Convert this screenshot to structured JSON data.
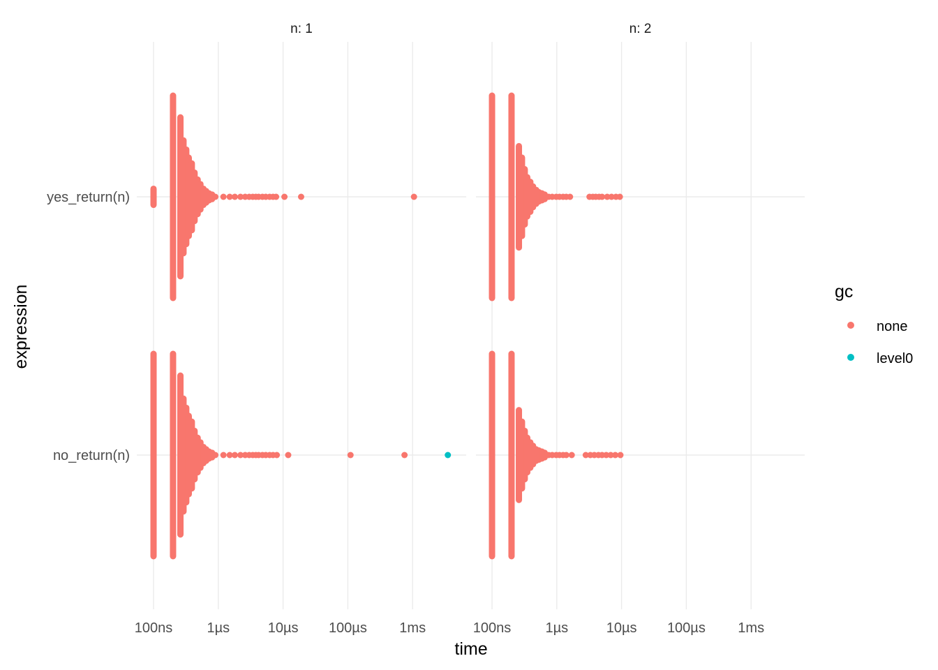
{
  "chart_data": {
    "type": "scatter",
    "xlabel": "time",
    "ylabel": "expression",
    "x_scale": "log10",
    "x_ticks": [
      "100ns",
      "1µs",
      "10µs",
      "100µs",
      "1ms"
    ],
    "x_tick_values_seconds": [
      1e-07,
      1e-06,
      1e-05,
      0.0001,
      0.001
    ],
    "y_categories": [
      "yes_return(n)",
      "no_return(n)"
    ],
    "grid": true,
    "legend": {
      "title": "gc",
      "position": "right",
      "entries": [
        {
          "label": "none",
          "color": "#F8766D"
        },
        {
          "label": "level0",
          "color": "#00BFC4"
        }
      ]
    },
    "facets": [
      {
        "label": "n: 1",
        "rows": [
          {
            "expression": "yes_return(n)",
            "columns": [
              {
                "t": 1e-07,
                "n": 8
              },
              {
                "t": 2e-07,
                "n": 900
              },
              {
                "t": 2.6e-07,
                "n": 70
              },
              {
                "t": 2.9e-07,
                "n": 50
              },
              {
                "t": 3.2e-07,
                "n": 42
              },
              {
                "t": 3.5e-07,
                "n": 35
              },
              {
                "t": 3.9e-07,
                "n": 30
              },
              {
                "t": 4.3e-07,
                "n": 22
              },
              {
                "t": 4.8e-07,
                "n": 16
              },
              {
                "t": 5.3e-07,
                "n": 12
              },
              {
                "t": 5.9e-07,
                "n": 8
              },
              {
                "t": 6.5e-07,
                "n": 6
              },
              {
                "t": 7.2e-07,
                "n": 4
              },
              {
                "t": 8e-07,
                "n": 3
              }
            ],
            "tail": [
              {
                "t": 9e-07
              },
              {
                "t": 1.2e-06
              },
              {
                "t": 1.5e-06
              },
              {
                "t": 1.8e-06
              },
              {
                "t": 2.2e-06
              },
              {
                "t": 2.6e-06
              },
              {
                "t": 3e-06
              },
              {
                "t": 3.4e-06
              },
              {
                "t": 3.8e-06
              },
              {
                "t": 4.2e-06
              },
              {
                "t": 4.8e-06
              },
              {
                "t": 5.4e-06
              },
              {
                "t": 6.2e-06
              },
              {
                "t": 7e-06
              },
              {
                "t": 7.8e-06
              },
              {
                "t": 1.05e-05
              },
              {
                "t": 1.9e-05
              },
              {
                "t": 0.00105
              }
            ],
            "level0": []
          },
          {
            "expression": "no_return(n)",
            "columns": [
              {
                "t": 1e-07,
                "n": 300
              },
              {
                "t": 2e-07,
                "n": 900
              },
              {
                "t": 2.6e-07,
                "n": 70
              },
              {
                "t": 2.9e-07,
                "n": 50
              },
              {
                "t": 3.2e-07,
                "n": 42
              },
              {
                "t": 3.5e-07,
                "n": 35
              },
              {
                "t": 3.9e-07,
                "n": 30
              },
              {
                "t": 4.3e-07,
                "n": 22
              },
              {
                "t": 4.8e-07,
                "n": 16
              },
              {
                "t": 5.3e-07,
                "n": 12
              },
              {
                "t": 5.9e-07,
                "n": 8
              },
              {
                "t": 6.5e-07,
                "n": 6
              },
              {
                "t": 7.2e-07,
                "n": 4
              },
              {
                "t": 8e-07,
                "n": 3
              }
            ],
            "tail": [
              {
                "t": 9e-07
              },
              {
                "t": 1.2e-06
              },
              {
                "t": 1.5e-06
              },
              {
                "t": 1.8e-06
              },
              {
                "t": 2.2e-06
              },
              {
                "t": 2.6e-06
              },
              {
                "t": 3e-06
              },
              {
                "t": 3.4e-06
              },
              {
                "t": 3.8e-06
              },
              {
                "t": 4.2e-06
              },
              {
                "t": 4.8e-06
              },
              {
                "t": 5.4e-06
              },
              {
                "t": 6.2e-06
              },
              {
                "t": 7e-06
              },
              {
                "t": 8e-06
              },
              {
                "t": 1.2e-05
              },
              {
                "t": 0.00011
              },
              {
                "t": 0.00075
              }
            ],
            "level0": [
              {
                "t": 0.0035
              }
            ]
          }
        ]
      },
      {
        "label": "n: 2",
        "rows": [
          {
            "expression": "yes_return(n)",
            "columns": [
              {
                "t": 1e-07,
                "n": 120
              },
              {
                "t": 2e-07,
                "n": 900
              },
              {
                "t": 2.6e-07,
                "n": 45
              },
              {
                "t": 2.9e-07,
                "n": 35
              },
              {
                "t": 3.2e-07,
                "n": 25
              },
              {
                "t": 3.5e-07,
                "n": 18
              },
              {
                "t": 3.9e-07,
                "n": 14
              },
              {
                "t": 4.3e-07,
                "n": 10
              },
              {
                "t": 4.8e-07,
                "n": 7
              },
              {
                "t": 5.3e-07,
                "n": 5
              },
              {
                "t": 5.9e-07,
                "n": 4
              },
              {
                "t": 6.5e-07,
                "n": 3
              }
            ],
            "tail": [
              {
                "t": 7.5e-07
              },
              {
                "t": 8.5e-07
              },
              {
                "t": 9.8e-07
              },
              {
                "t": 1.1e-06
              },
              {
                "t": 1.25e-06
              },
              {
                "t": 1.4e-06
              },
              {
                "t": 1.6e-06
              },
              {
                "t": 3.2e-06
              },
              {
                "t": 3.6e-06
              },
              {
                "t": 4e-06
              },
              {
                "t": 4.5e-06
              },
              {
                "t": 5e-06
              },
              {
                "t": 6e-06
              },
              {
                "t": 7e-06
              },
              {
                "t": 8.2e-06
              },
              {
                "t": 9.4e-06
              }
            ],
            "level0": []
          },
          {
            "expression": "no_return(n)",
            "columns": [
              {
                "t": 1e-07,
                "n": 90
              },
              {
                "t": 2e-07,
                "n": 900
              },
              {
                "t": 2.6e-07,
                "n": 40
              },
              {
                "t": 2.9e-07,
                "n": 30
              },
              {
                "t": 3.2e-07,
                "n": 22
              },
              {
                "t": 3.5e-07,
                "n": 16
              },
              {
                "t": 3.9e-07,
                "n": 12
              },
              {
                "t": 4.3e-07,
                "n": 9
              },
              {
                "t": 4.8e-07,
                "n": 6
              },
              {
                "t": 5.3e-07,
                "n": 5
              },
              {
                "t": 5.9e-07,
                "n": 4
              },
              {
                "t": 6.5e-07,
                "n": 3
              }
            ],
            "tail": [
              {
                "t": 7.5e-07
              },
              {
                "t": 8.5e-07
              },
              {
                "t": 9.8e-07
              },
              {
                "t": 1.1e-06
              },
              {
                "t": 1.25e-06
              },
              {
                "t": 1.4e-06
              },
              {
                "t": 1.7e-06
              },
              {
                "t": 2.8e-06
              },
              {
                "t": 3.3e-06
              },
              {
                "t": 3.8e-06
              },
              {
                "t": 4.4e-06
              },
              {
                "t": 5e-06
              },
              {
                "t": 5.8e-06
              },
              {
                "t": 6.8e-06
              },
              {
                "t": 8e-06
              },
              {
                "t": 9.6e-06
              }
            ],
            "level0": []
          }
        ]
      }
    ]
  }
}
